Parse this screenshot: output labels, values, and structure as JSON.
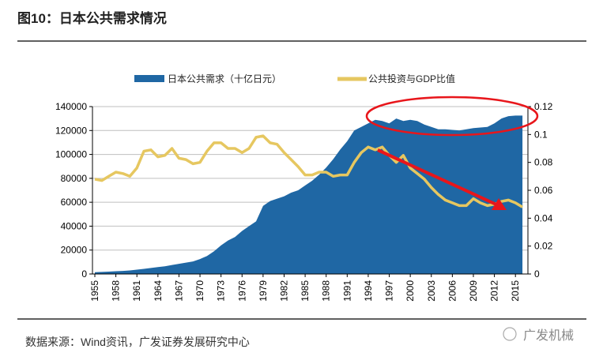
{
  "title": "图10：日本公共需求情况",
  "source": "数据来源：Wind资讯，广发证券发展研究中心",
  "watermark": "广发机械",
  "colors": {
    "area": "#1F67A4",
    "line": "#E6C760",
    "annotation": "#E8161B",
    "grid": "#BFBFBF"
  },
  "chart_data": {
    "type": "area+line",
    "legend": [
      "日本公共需求（十亿日元）",
      "公共投资与GDP比值"
    ],
    "legend_placement": "top",
    "grid": true,
    "x": [
      1955,
      1956,
      1957,
      1958,
      1959,
      1960,
      1961,
      1962,
      1963,
      1964,
      1965,
      1966,
      1967,
      1968,
      1969,
      1970,
      1971,
      1972,
      1973,
      1974,
      1975,
      1976,
      1977,
      1978,
      1979,
      1980,
      1981,
      1982,
      1983,
      1984,
      1985,
      1986,
      1987,
      1988,
      1989,
      1990,
      1991,
      1992,
      1993,
      1994,
      1995,
      1996,
      1997,
      1998,
      1999,
      2000,
      2001,
      2002,
      2003,
      2004,
      2005,
      2006,
      2007,
      2008,
      2009,
      2010,
      2011,
      2012,
      2013,
      2014,
      2015,
      2016
    ],
    "x_tick_labels": [
      "1955",
      "1958",
      "1961",
      "1964",
      "1967",
      "1970",
      "1973",
      "1976",
      "1979",
      "1982",
      "1985",
      "1988",
      "1991",
      "1994",
      "1997",
      "2000",
      "2003",
      "2006",
      "2009",
      "2012",
      "2015"
    ],
    "left_axis": {
      "ylim": [
        0,
        140000
      ],
      "ticks": [
        "0",
        "20000",
        "40000",
        "60000",
        "80000",
        "100000",
        "120000",
        "140000"
      ]
    },
    "right_axis": {
      "ylim": [
        0,
        0.12
      ],
      "ticks": [
        "0",
        "0.02",
        "0.04",
        "0.06",
        "0.08",
        "0.1",
        "0.12"
      ]
    },
    "series": [
      {
        "name": "日本公共需求（十亿日元）",
        "axis": "left",
        "type": "area",
        "values": [
          1500,
          1700,
          2000,
          2300,
          2600,
          3000,
          3600,
          4300,
          5000,
          5800,
          6500,
          7500,
          8500,
          9500,
          10500,
          12500,
          15000,
          19000,
          24000,
          28000,
          31000,
          36000,
          40000,
          44000,
          57000,
          61000,
          63000,
          65000,
          68000,
          70000,
          74000,
          78000,
          83000,
          89000,
          96000,
          104000,
          111000,
          120000,
          123000,
          126000,
          129000,
          128000,
          126000,
          130000,
          128000,
          129000,
          128000,
          125000,
          123000,
          121000,
          121000,
          120500,
          120000,
          121000,
          122000,
          122500,
          123000,
          126000,
          130000,
          132000,
          132500,
          132500
        ]
      },
      {
        "name": "公共投资与GDP比值",
        "axis": "right",
        "type": "line",
        "values": [
          0.068,
          0.067,
          0.07,
          0.073,
          0.072,
          0.07,
          0.076,
          0.088,
          0.089,
          0.084,
          0.085,
          0.09,
          0.083,
          0.082,
          0.079,
          0.08,
          0.088,
          0.094,
          0.094,
          0.09,
          0.09,
          0.087,
          0.09,
          0.098,
          0.099,
          0.094,
          0.093,
          0.087,
          0.082,
          0.077,
          0.071,
          0.071,
          0.073,
          0.073,
          0.07,
          0.071,
          0.071,
          0.08,
          0.087,
          0.091,
          0.089,
          0.091,
          0.085,
          0.08,
          0.085,
          0.076,
          0.072,
          0.068,
          0.062,
          0.057,
          0.053,
          0.051,
          0.049,
          0.049,
          0.054,
          0.051,
          0.049,
          0.05,
          0.052,
          0.053,
          0.051,
          0.048
        ]
      }
    ],
    "annotations": [
      "red ellipse around 1994–2016 public demand plateau",
      "red downward arrow along declining public investment/GDP ratio 1996–2014"
    ]
  }
}
